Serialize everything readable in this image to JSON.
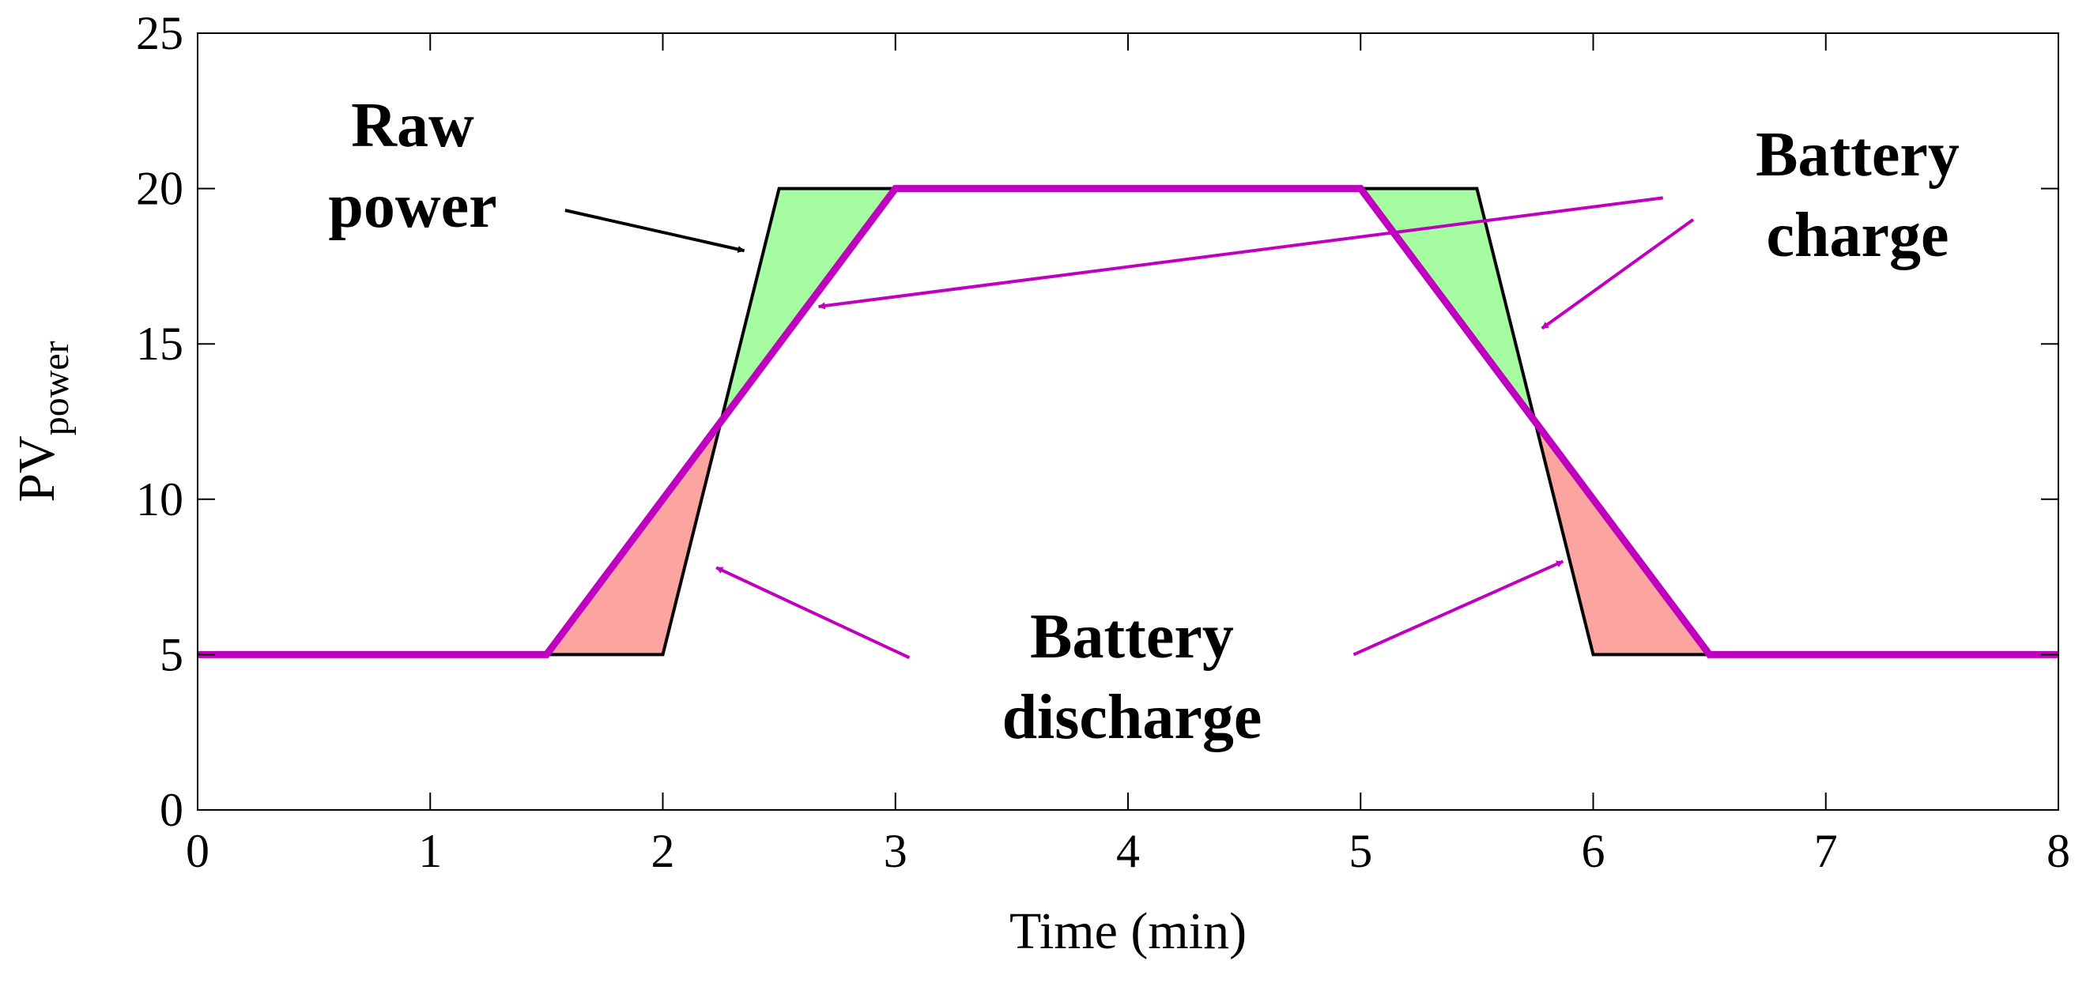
{
  "chart_data": {
    "type": "line",
    "title": "",
    "xlabel": "Time (min)",
    "ylabel": "PV",
    "ylabel_sub": "power",
    "xlim": [
      0,
      8
    ],
    "ylim": [
      0,
      25
    ],
    "xticks": [
      0,
      1,
      2,
      3,
      4,
      5,
      6,
      7,
      8
    ],
    "yticks": [
      0,
      5,
      10,
      15,
      20,
      25
    ],
    "grid": false,
    "series": [
      {
        "color": "#000000",
        "x": [
          0,
          2,
          2.5,
          5.5,
          6,
          8
        ],
        "y": [
          5,
          5,
          20,
          20,
          5,
          5
        ]
      },
      {
        "color": "#bf00bf",
        "x": [
          0,
          1.5,
          3,
          5,
          6.5,
          8
        ],
        "y": [
          5,
          5,
          20,
          20,
          5,
          5
        ]
      }
    ],
    "regions": [
      {
        "kind": "charge",
        "color": "#a6fca0",
        "points": [
          [
            2.25,
            12.5
          ],
          [
            2.5,
            20
          ],
          [
            3,
            20
          ]
        ]
      },
      {
        "kind": "charge",
        "color": "#a6fca0",
        "points": [
          [
            5,
            20
          ],
          [
            5.5,
            20
          ],
          [
            5.75,
            12.5
          ]
        ]
      },
      {
        "kind": "discharge",
        "color": "#fca5a0",
        "points": [
          [
            1.5,
            5
          ],
          [
            2,
            5
          ],
          [
            2.25,
            12.5
          ]
        ]
      },
      {
        "kind": "discharge",
        "color": "#fca5a0",
        "points": [
          [
            5.75,
            12.5
          ],
          [
            6,
            5
          ],
          [
            6.5,
            5
          ]
        ]
      }
    ],
    "annotations": [
      {
        "lines": [
          "Raw",
          "power"
        ],
        "color": "#000000",
        "arrows": [
          {
            "from": [
              1.58,
              19.3
            ],
            "to": [
              2.35,
              18.0
            ]
          }
        ]
      },
      {
        "lines": [
          "Battery",
          "charge"
        ],
        "color": "#bf00bf",
        "arrows": [
          {
            "from": [
              6.3,
              19.7
            ],
            "to": [
              2.67,
              16.2
            ]
          },
          {
            "from": [
              6.43,
              19.0
            ],
            "to": [
              5.78,
              15.5
            ]
          }
        ]
      },
      {
        "lines": [
          "Battery",
          "discharge"
        ],
        "color": "#bf00bf",
        "arrows": [
          {
            "from": [
              3.06,
              4.9
            ],
            "to": [
              2.23,
              7.8
            ]
          },
          {
            "from": [
              4.97,
              5.0
            ],
            "to": [
              5.87,
              8.0
            ]
          }
        ]
      }
    ]
  }
}
